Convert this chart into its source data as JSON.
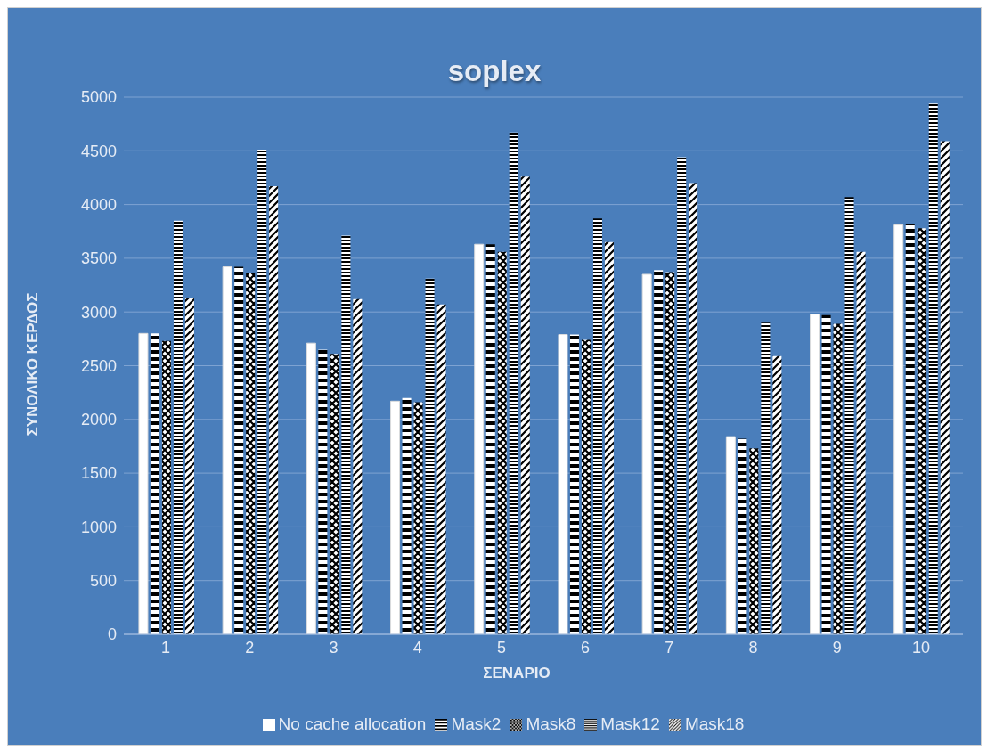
{
  "chart_data": {
    "type": "bar",
    "title": "soplex",
    "xlabel": "ΣΕΝΑΡΙΟ",
    "ylabel": "ΣΥΝΟΛΙΚΟ ΚΕΡΔΟΣ",
    "categories": [
      "1",
      "2",
      "3",
      "4",
      "5",
      "6",
      "7",
      "8",
      "9",
      "10"
    ],
    "series": [
      {
        "name": "No cache allocation",
        "color": "#ffffff",
        "values": [
          2800,
          3420,
          2710,
          2170,
          3630,
          2790,
          3350,
          1840,
          2980,
          3810
        ]
      },
      {
        "name": "Mask2",
        "color": "#000000",
        "values": [
          2800,
          3420,
          2650,
          2200,
          3630,
          2790,
          3390,
          1820,
          2970,
          3820
        ]
      },
      {
        "name": "Mask8",
        "color": "#000000",
        "values": [
          2730,
          3360,
          2610,
          2160,
          3560,
          2740,
          3370,
          1730,
          2890,
          3780
        ]
      },
      {
        "name": "Mask12",
        "color": "#000000",
        "values": [
          3850,
          4510,
          3710,
          3310,
          4670,
          3870,
          4440,
          2900,
          4070,
          4940
        ]
      },
      {
        "name": "Mask18",
        "color": "#000000",
        "values": [
          3130,
          4170,
          3120,
          3070,
          4260,
          3650,
          4200,
          2590,
          3560,
          4590
        ]
      }
    ],
    "ylim": [
      0,
      5000
    ],
    "yticks": [
      0,
      500,
      1000,
      1500,
      2000,
      2500,
      3000,
      3500,
      4000,
      4500,
      5000
    ],
    "grid": "y",
    "legend": "bottom"
  }
}
